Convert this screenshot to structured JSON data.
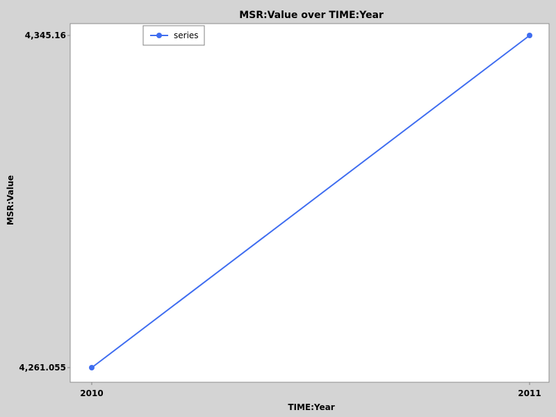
{
  "chart_data": {
    "type": "line",
    "title": "MSR:Value over TIME:Year",
    "xlabel": "TIME:Year",
    "ylabel": "MSR:Value",
    "categories": [
      "2010",
      "2011"
    ],
    "y_ticks": [
      "4,261.055",
      "4,345.16"
    ],
    "ylim": [
      4261.055,
      4345.16
    ],
    "series": [
      {
        "name": "series",
        "values": [
          4261.055,
          4345.16
        ]
      }
    ],
    "legend": "top-left",
    "grid": false,
    "colors": {
      "background": "#d4d4d4",
      "plot_area": "#ffffff",
      "series": "#3f6df0"
    }
  }
}
